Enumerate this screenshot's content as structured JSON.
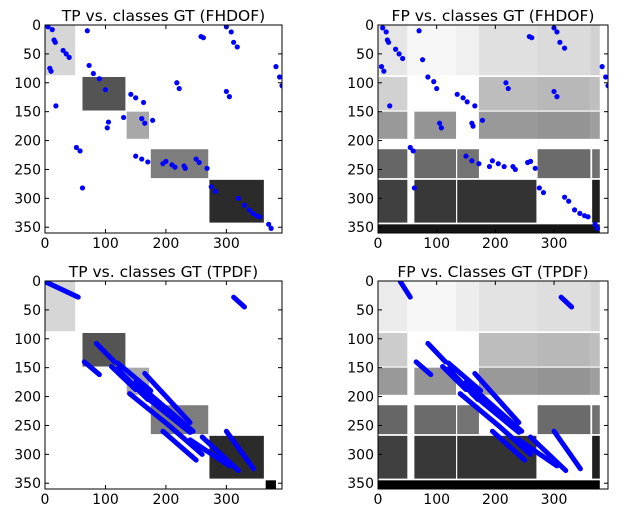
{
  "chart_data": [
    {
      "type": "heatmap",
      "title": "TP vs. classes GT (FHDOF)",
      "xlim": [
        0,
        392
      ],
      "ylim": [
        360,
        0
      ],
      "xticks": [
        0,
        100,
        200,
        300
      ],
      "yticks": [
        0,
        50,
        100,
        150,
        200,
        250,
        300,
        350
      ],
      "blocks": [
        {
          "x0": 0,
          "x1": 50,
          "y0": 0,
          "y1": 87,
          "gray": 0.84
        },
        {
          "x0": 62,
          "x1": 133,
          "y0": 90,
          "y1": 148,
          "gray": 0.33
        },
        {
          "x0": 135,
          "x1": 172,
          "y0": 150,
          "y1": 197,
          "gray": 0.66
        },
        {
          "x0": 175,
          "x1": 270,
          "y0": 215,
          "y1": 265,
          "gray": 0.49
        },
        {
          "x0": 272,
          "x1": 362,
          "y0": 268,
          "y1": 342,
          "gray": 0.17
        }
      ],
      "points": [
        [
          5,
          3
        ],
        [
          12,
          8
        ],
        [
          15,
          26
        ],
        [
          17,
          30
        ],
        [
          30,
          44
        ],
        [
          35,
          50
        ],
        [
          40,
          56
        ],
        [
          8,
          75
        ],
        [
          10,
          80
        ],
        [
          18,
          140
        ],
        [
          52,
          212
        ],
        [
          58,
          218
        ],
        [
          62,
          282
        ],
        [
          70,
          10
        ],
        [
          73,
          70
        ],
        [
          80,
          84
        ],
        [
          90,
          93
        ],
        [
          100,
          112
        ],
        [
          105,
          168
        ],
        [
          103,
          178
        ],
        [
          142,
          120
        ],
        [
          150,
          126
        ],
        [
          163,
          134
        ],
        [
          130,
          160
        ],
        [
          160,
          162
        ],
        [
          165,
          170
        ],
        [
          178,
          165
        ],
        [
          150,
          227
        ],
        [
          160,
          232
        ],
        [
          170,
          237
        ],
        [
          195,
          240
        ],
        [
          210,
          242
        ],
        [
          215,
          246
        ],
        [
          218,
          100
        ],
        [
          222,
          110
        ],
        [
          200,
          236
        ],
        [
          230,
          244
        ],
        [
          232,
          248
        ],
        [
          250,
          232
        ],
        [
          255,
          238
        ],
        [
          258,
          20
        ],
        [
          262,
          22
        ],
        [
          300,
          3
        ],
        [
          308,
          12
        ],
        [
          312,
          30
        ],
        [
          318,
          38
        ],
        [
          275,
          280
        ],
        [
          282,
          288
        ],
        [
          320,
          300
        ],
        [
          330,
          312
        ],
        [
          338,
          320
        ],
        [
          344,
          326
        ],
        [
          350,
          330
        ],
        [
          355,
          332
        ],
        [
          268,
          248
        ],
        [
          300,
          115
        ],
        [
          305,
          124
        ],
        [
          370,
          345
        ],
        [
          374,
          352
        ],
        [
          382,
          72
        ],
        [
          388,
          90
        ],
        [
          392,
          105
        ]
      ]
    },
    {
      "type": "heatmap",
      "title": "FP vs. classes GT (FHDOF)",
      "xlim": [
        0,
        392
      ],
      "ylim": [
        360,
        0
      ],
      "xticks": [
        0,
        100,
        200,
        300
      ],
      "yticks": [
        0,
        50,
        100,
        150,
        200,
        250,
        300,
        350
      ],
      "blocks": [
        {
          "x0": 0,
          "x1": 50,
          "y0": 0,
          "y1": 87,
          "gray": 0.9
        },
        {
          "x0": 50,
          "x1": 133,
          "y0": 0,
          "y1": 87,
          "gray": 0.97
        },
        {
          "x0": 133,
          "x1": 172,
          "y0": 0,
          "y1": 87,
          "gray": 0.94
        },
        {
          "x0": 172,
          "x1": 270,
          "y0": 0,
          "y1": 87,
          "gray": 0.88
        },
        {
          "x0": 270,
          "x1": 362,
          "y0": 0,
          "y1": 87,
          "gray": 0.86
        },
        {
          "x0": 362,
          "x1": 378,
          "y0": 0,
          "y1": 87,
          "gray": 0.82
        },
        {
          "x0": 0,
          "x1": 50,
          "y0": 90,
          "y1": 148,
          "gray": 0.82
        },
        {
          "x0": 172,
          "x1": 270,
          "y0": 90,
          "y1": 148,
          "gray": 0.74
        },
        {
          "x0": 270,
          "x1": 362,
          "y0": 90,
          "y1": 148,
          "gray": 0.72
        },
        {
          "x0": 362,
          "x1": 378,
          "y0": 90,
          "y1": 148,
          "gray": 0.75
        },
        {
          "x0": 0,
          "x1": 50,
          "y0": 150,
          "y1": 197,
          "gray": 0.6
        },
        {
          "x0": 62,
          "x1": 133,
          "y0": 150,
          "y1": 197,
          "gray": 0.58
        },
        {
          "x0": 172,
          "x1": 270,
          "y0": 150,
          "y1": 197,
          "gray": 0.6
        },
        {
          "x0": 270,
          "x1": 362,
          "y0": 150,
          "y1": 197,
          "gray": 0.58
        },
        {
          "x0": 362,
          "x1": 378,
          "y0": 150,
          "y1": 197,
          "gray": 0.62
        },
        {
          "x0": 0,
          "x1": 50,
          "y0": 215,
          "y1": 265,
          "gray": 0.4
        },
        {
          "x0": 62,
          "x1": 133,
          "y0": 215,
          "y1": 265,
          "gray": 0.42
        },
        {
          "x0": 135,
          "x1": 172,
          "y0": 215,
          "y1": 265,
          "gray": 0.45
        },
        {
          "x0": 272,
          "x1": 362,
          "y0": 215,
          "y1": 265,
          "gray": 0.42
        },
        {
          "x0": 365,
          "x1": 378,
          "y0": 215,
          "y1": 265,
          "gray": 0.44
        },
        {
          "x0": 0,
          "x1": 50,
          "y0": 268,
          "y1": 342,
          "gray": 0.25
        },
        {
          "x0": 62,
          "x1": 133,
          "y0": 268,
          "y1": 342,
          "gray": 0.22
        },
        {
          "x0": 135,
          "x1": 270,
          "y0": 268,
          "y1": 342,
          "gray": 0.2
        },
        {
          "x0": 365,
          "x1": 378,
          "y0": 268,
          "y1": 342,
          "gray": 0.12
        },
        {
          "x0": 0,
          "x1": 378,
          "y0": 345,
          "y1": 360,
          "gray": 0.08
        }
      ],
      "points": [
        [
          8,
          5
        ],
        [
          14,
          12
        ],
        [
          16,
          26
        ],
        [
          18,
          30
        ],
        [
          30,
          42
        ],
        [
          36,
          50
        ],
        [
          42,
          58
        ],
        [
          6,
          72
        ],
        [
          10,
          80
        ],
        [
          20,
          140
        ],
        [
          55,
          212
        ],
        [
          60,
          218
        ],
        [
          62,
          282
        ],
        [
          70,
          10
        ],
        [
          76,
          60
        ],
        [
          85,
          90
        ],
        [
          95,
          98
        ],
        [
          100,
          110
        ],
        [
          105,
          170
        ],
        [
          108,
          178
        ],
        [
          135,
          120
        ],
        [
          145,
          126
        ],
        [
          152,
          133
        ],
        [
          165,
          140
        ],
        [
          160,
          170
        ],
        [
          162,
          175
        ],
        [
          178,
          165
        ],
        [
          150,
          227
        ],
        [
          160,
          235
        ],
        [
          172,
          240
        ],
        [
          195,
          235
        ],
        [
          205,
          240
        ],
        [
          215,
          245
        ],
        [
          218,
          100
        ],
        [
          222,
          110
        ],
        [
          190,
          245
        ],
        [
          230,
          245
        ],
        [
          234,
          250
        ],
        [
          255,
          238
        ],
        [
          260,
          236
        ],
        [
          258,
          20
        ],
        [
          262,
          22
        ],
        [
          300,
          5
        ],
        [
          305,
          12
        ],
        [
          310,
          30
        ],
        [
          318,
          40
        ],
        [
          275,
          282
        ],
        [
          282,
          290
        ],
        [
          318,
          298
        ],
        [
          325,
          305
        ],
        [
          335,
          320
        ],
        [
          344,
          326
        ],
        [
          352,
          330
        ],
        [
          358,
          332
        ],
        [
          268,
          248
        ],
        [
          300,
          115
        ],
        [
          305,
          124
        ],
        [
          370,
          345
        ],
        [
          374,
          352
        ],
        [
          382,
          72
        ],
        [
          388,
          90
        ],
        [
          392,
          105
        ]
      ]
    },
    {
      "type": "heatmap",
      "title": "TP vs. classes GT (TPDF)",
      "xlim": [
        0,
        392
      ],
      "ylim": [
        360,
        0
      ],
      "xticks": [
        0,
        100,
        200,
        300
      ],
      "yticks": [
        0,
        50,
        100,
        150,
        200,
        250,
        300,
        350
      ],
      "blocks": [
        {
          "x0": 0,
          "x1": 50,
          "y0": 0,
          "y1": 87,
          "gray": 0.84
        },
        {
          "x0": 62,
          "x1": 133,
          "y0": 90,
          "y1": 148,
          "gray": 0.33
        },
        {
          "x0": 135,
          "x1": 172,
          "y0": 150,
          "y1": 197,
          "gray": 0.66
        },
        {
          "x0": 175,
          "x1": 270,
          "y0": 215,
          "y1": 265,
          "gray": 0.49
        },
        {
          "x0": 272,
          "x1": 362,
          "y0": 268,
          "y1": 342,
          "gray": 0.17
        },
        {
          "x0": 365,
          "x1": 382,
          "y0": 345,
          "y1": 360,
          "gray": 0.0
        }
      ],
      "segments": [
        [
          0,
          1,
          55,
          28
        ],
        [
          85,
          108,
          115,
          140
        ],
        [
          65,
          140,
          90,
          162
        ],
        [
          120,
          142,
          175,
          190
        ],
        [
          110,
          148,
          150,
          188
        ],
        [
          120,
          152,
          170,
          205
        ],
        [
          165,
          160,
          240,
          245
        ],
        [
          150,
          175,
          245,
          260
        ],
        [
          140,
          195,
          205,
          250
        ],
        [
          160,
          195,
          240,
          262
        ],
        [
          205,
          250,
          260,
          300
        ],
        [
          195,
          260,
          250,
          310
        ],
        [
          260,
          270,
          320,
          328
        ],
        [
          240,
          275,
          305,
          320
        ],
        [
          300,
          260,
          345,
          325
        ],
        [
          312,
          28,
          330,
          45
        ]
      ]
    },
    {
      "type": "heatmap",
      "title": "FP vs. Classes GT (TPDF)",
      "xlim": [
        0,
        392
      ],
      "ylim": [
        360,
        0
      ],
      "xticks": [
        0,
        100,
        200,
        300
      ],
      "yticks": [
        0,
        50,
        100,
        150,
        200,
        250,
        300,
        350
      ],
      "blocks": [
        {
          "x0": 0,
          "x1": 50,
          "y0": 0,
          "y1": 87,
          "gray": 0.92
        },
        {
          "x0": 50,
          "x1": 133,
          "y0": 0,
          "y1": 87,
          "gray": 0.97
        },
        {
          "x0": 133,
          "x1": 172,
          "y0": 0,
          "y1": 87,
          "gray": 0.93
        },
        {
          "x0": 172,
          "x1": 270,
          "y0": 0,
          "y1": 87,
          "gray": 0.89
        },
        {
          "x0": 270,
          "x1": 362,
          "y0": 0,
          "y1": 87,
          "gray": 0.87
        },
        {
          "x0": 362,
          "x1": 378,
          "y0": 0,
          "y1": 87,
          "gray": 0.84
        },
        {
          "x0": 0,
          "x1": 50,
          "y0": 90,
          "y1": 148,
          "gray": 0.8
        },
        {
          "x0": 172,
          "x1": 270,
          "y0": 90,
          "y1": 148,
          "gray": 0.74
        },
        {
          "x0": 270,
          "x1": 362,
          "y0": 90,
          "y1": 148,
          "gray": 0.72
        },
        {
          "x0": 362,
          "x1": 378,
          "y0": 90,
          "y1": 148,
          "gray": 0.75
        },
        {
          "x0": 0,
          "x1": 50,
          "y0": 150,
          "y1": 197,
          "gray": 0.6
        },
        {
          "x0": 62,
          "x1": 133,
          "y0": 150,
          "y1": 197,
          "gray": 0.58
        },
        {
          "x0": 172,
          "x1": 270,
          "y0": 150,
          "y1": 197,
          "gray": 0.6
        },
        {
          "x0": 270,
          "x1": 362,
          "y0": 150,
          "y1": 197,
          "gray": 0.58
        },
        {
          "x0": 362,
          "x1": 378,
          "y0": 150,
          "y1": 197,
          "gray": 0.62
        },
        {
          "x0": 0,
          "x1": 50,
          "y0": 215,
          "y1": 265,
          "gray": 0.4
        },
        {
          "x0": 62,
          "x1": 133,
          "y0": 215,
          "y1": 265,
          "gray": 0.42
        },
        {
          "x0": 135,
          "x1": 172,
          "y0": 215,
          "y1": 265,
          "gray": 0.45
        },
        {
          "x0": 272,
          "x1": 362,
          "y0": 215,
          "y1": 265,
          "gray": 0.42
        },
        {
          "x0": 365,
          "x1": 378,
          "y0": 215,
          "y1": 265,
          "gray": 0.44
        },
        {
          "x0": 0,
          "x1": 50,
          "y0": 268,
          "y1": 342,
          "gray": 0.25
        },
        {
          "x0": 62,
          "x1": 133,
          "y0": 268,
          "y1": 342,
          "gray": 0.22
        },
        {
          "x0": 135,
          "x1": 270,
          "y0": 268,
          "y1": 342,
          "gray": 0.2
        },
        {
          "x0": 365,
          "x1": 378,
          "y0": 268,
          "y1": 342,
          "gray": 0.12
        },
        {
          "x0": 0,
          "x1": 378,
          "y0": 345,
          "y1": 360,
          "gray": 0.0
        }
      ],
      "segments": [
        [
          38,
          1,
          55,
          28
        ],
        [
          85,
          108,
          115,
          140
        ],
        [
          65,
          140,
          90,
          162
        ],
        [
          120,
          142,
          175,
          190
        ],
        [
          110,
          148,
          150,
          188
        ],
        [
          120,
          152,
          170,
          205
        ],
        [
          165,
          160,
          240,
          245
        ],
        [
          150,
          175,
          245,
          260
        ],
        [
          140,
          195,
          205,
          250
        ],
        [
          160,
          195,
          240,
          262
        ],
        [
          205,
          250,
          260,
          300
        ],
        [
          195,
          260,
          250,
          310
        ],
        [
          260,
          270,
          320,
          328
        ],
        [
          240,
          275,
          305,
          320
        ],
        [
          300,
          260,
          345,
          325
        ],
        [
          312,
          28,
          330,
          45
        ]
      ]
    }
  ]
}
